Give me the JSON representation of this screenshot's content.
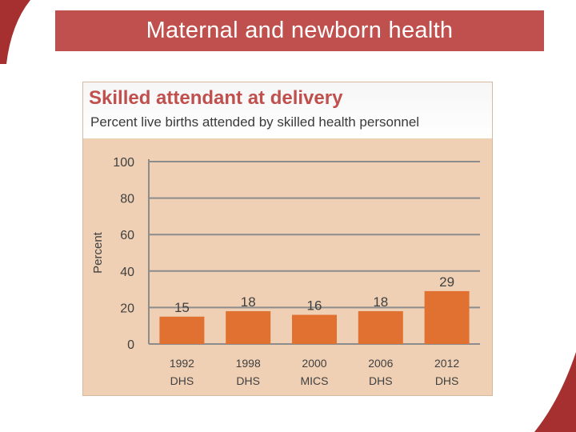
{
  "slide": {
    "title": "Maternal and newborn health",
    "accent_color": "#c0504d"
  },
  "chart_data": {
    "type": "bar",
    "title": "Skilled attendant at delivery",
    "subtitle": "Percent live births attended by skilled health personnel",
    "xlabel": "",
    "ylabel": "Percent",
    "categories": [
      [
        "1992",
        "DHS"
      ],
      [
        "1998",
        "DHS"
      ],
      [
        "2000",
        "MICS"
      ],
      [
        "2006",
        "DHS"
      ],
      [
        "2012",
        "DHS"
      ]
    ],
    "values": [
      15,
      18,
      16,
      18,
      29
    ],
    "ylim": [
      0,
      100
    ],
    "yticks": [
      0,
      20,
      40,
      60,
      80,
      100
    ],
    "grid": true,
    "bar_color": "#e07131",
    "background_color": "#efd0b5"
  }
}
